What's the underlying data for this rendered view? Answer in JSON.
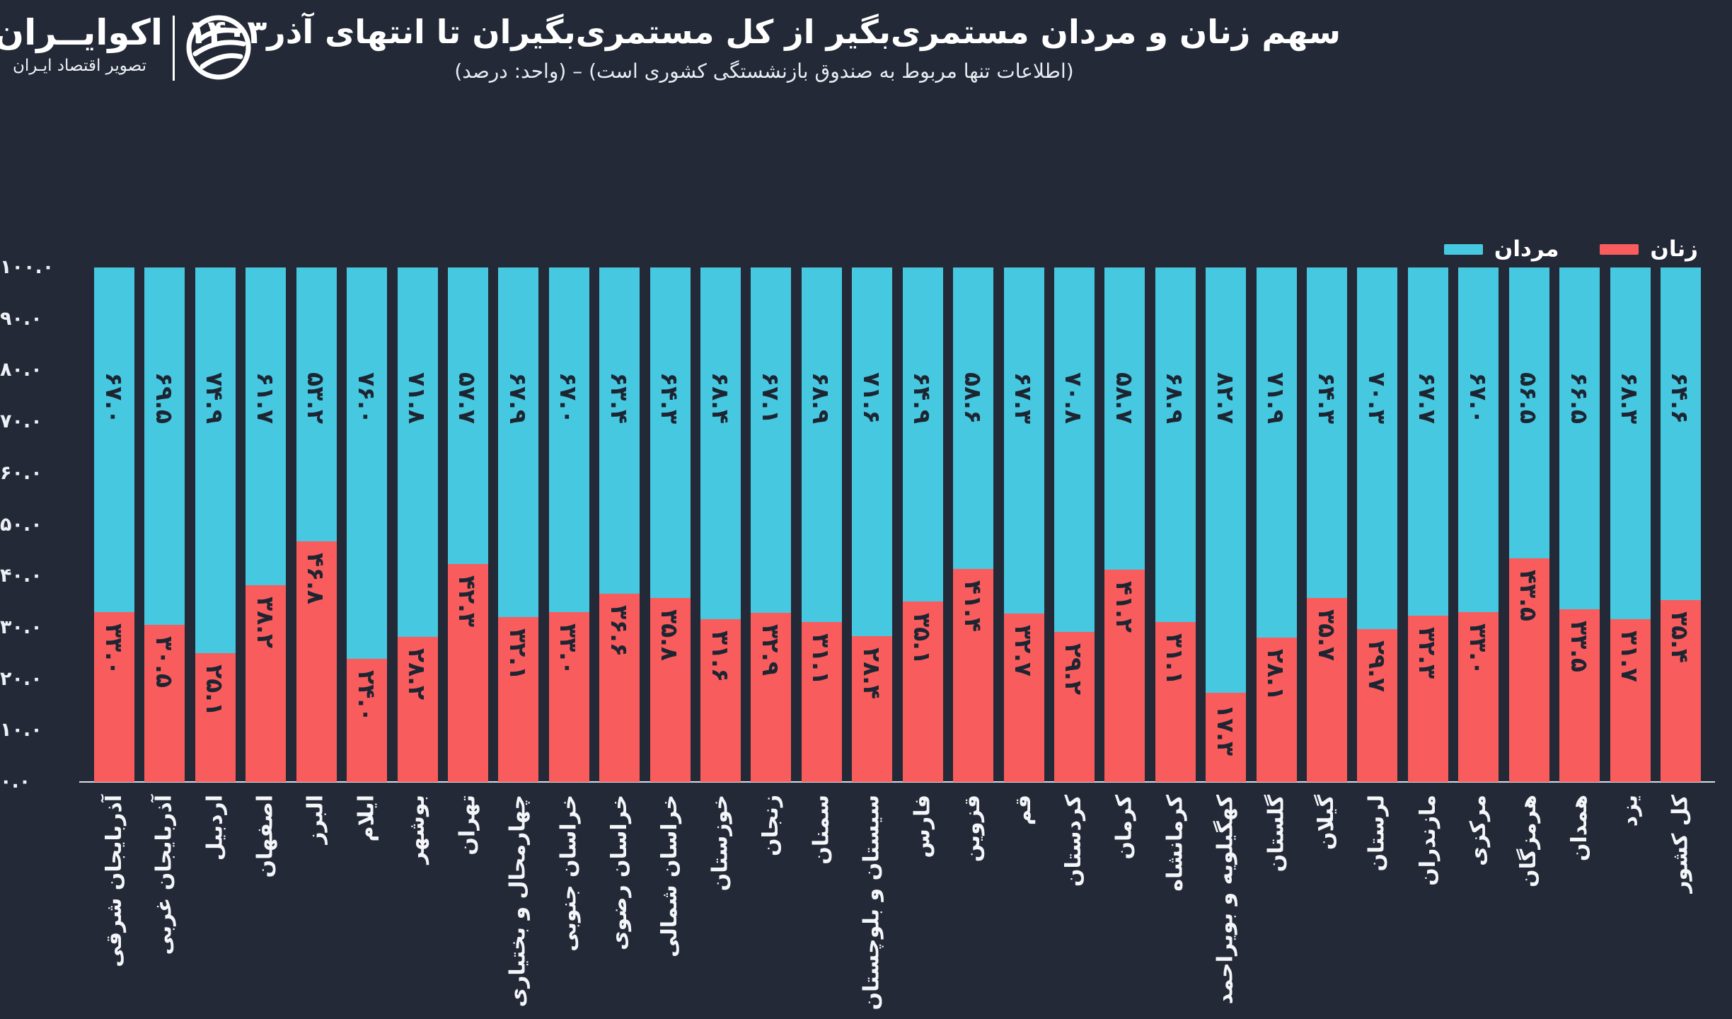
{
  "page": {
    "background": "#232936"
  },
  "logo": {
    "title": "اکوایــران",
    "tagline": "تصویر اقتصاد ایـران"
  },
  "header": {
    "title": "سهم زنان و مردان مستمری‌بگیر از کل مستمری‌بگیران تا انتهای آذر۱۴۰۳",
    "subtitle": "(اطلاعات تنها مربوط به صندوق بازنشستگی کشوری است) – (واحد: درصد)"
  },
  "legend": {
    "entries": [
      {
        "label": "زنان",
        "color": "#f95c5c"
      },
      {
        "label": "مردان",
        "color": "#46c8e1"
      }
    ]
  },
  "chart_data": {
    "type": "bar",
    "stacked": true,
    "normalized_to": 100,
    "unit": "درصد",
    "ylim": [
      0,
      100
    ],
    "grid": false,
    "legend_position": "top-right",
    "ytick_labels": [
      "۱۰۰.۰",
      "۹۰.۰",
      "۸۰.۰",
      "۷۰.۰",
      "۶۰.۰",
      "۵۰.۰",
      "۴۰.۰",
      "۳۰.۰",
      "۲۰.۰",
      "۱۰.۰",
      "۰.۰"
    ],
    "ytick_values": [
      100,
      90,
      80,
      70,
      60,
      50,
      40,
      30,
      20,
      10,
      0
    ],
    "categories": [
      "آذربایجان شرقی",
      "آذربایجان غربی",
      "اردبیل",
      "اصفهان",
      "البرز",
      "ایلام",
      "بوشهر",
      "تهران",
      "چهارمحال و بختیاری",
      "خراسان جنوبی",
      "خراسان رضوی",
      "خراسان شمالی",
      "خوزستان",
      "زنجان",
      "سمنان",
      "سیستان و بلوچستان",
      "فارس",
      "قزوین",
      "قم",
      "کردستان",
      "کرمان",
      "کرمانشاه",
      "کهگیلویه و بویراحمد",
      "گلستان",
      "گیلان",
      "لرستان",
      "مازندران",
      "مرکزی",
      "هرمزگان",
      "همدان",
      "یزد",
      "کل کشور"
    ],
    "series": [
      {
        "name": "مردان",
        "color": "#46c8e1",
        "values": [
          67.0,
          69.5,
          74.9,
          61.7,
          53.2,
          76.0,
          71.8,
          57.7,
          67.9,
          67.0,
          63.4,
          64.3,
          68.4,
          67.1,
          68.9,
          71.6,
          64.9,
          58.6,
          67.3,
          70.8,
          58.7,
          68.9,
          82.7,
          71.9,
          64.3,
          70.3,
          67.7,
          67.0,
          56.5,
          66.5,
          68.3,
          64.6
        ],
        "labels": [
          "۶۷.۰",
          "۶۹.۵",
          "۷۴.۹",
          "۶۱.۷",
          "۵۳.۲",
          "۷۶.۰",
          "۷۱.۸",
          "۵۷.۷",
          "۶۷.۹",
          "۶۷.۰",
          "۶۳.۴",
          "۶۴.۳",
          "۶۸.۴",
          "۶۷.۱",
          "۶۸.۹",
          "۷۱.۶",
          "۶۴.۹",
          "۵۸.۶",
          "۶۷.۳",
          "۷۰.۸",
          "۵۸.۷",
          "۶۸.۹",
          "۸۲.۷",
          "۷۱.۹",
          "۶۴.۳",
          "۷۰.۳",
          "۶۷.۷",
          "۶۷.۰",
          "۵۶.۵",
          "۶۶.۵",
          "۶۸.۳",
          "۶۴.۶"
        ]
      },
      {
        "name": "زنان",
        "color": "#f95c5c",
        "values": [
          33.0,
          30.5,
          25.1,
          38.2,
          46.8,
          24.0,
          28.2,
          42.3,
          32.1,
          33.0,
          36.6,
          35.8,
          31.6,
          32.9,
          31.1,
          28.4,
          35.1,
          41.4,
          32.7,
          29.2,
          41.2,
          31.1,
          17.3,
          28.1,
          35.7,
          29.7,
          32.3,
          33.0,
          43.5,
          33.5,
          31.7,
          35.4
        ],
        "labels": [
          "۳۳.۰",
          "۳۰.۵",
          "۲۵.۱",
          "۳۸.۲",
          "۴۶.۸",
          "۲۴.۰",
          "۲۸.۲",
          "۴۲.۳",
          "۳۲.۱",
          "۳۳.۰",
          "۳۶.۶",
          "۳۵.۸",
          "۳۱.۶",
          "۳۲.۹",
          "۳۱.۱",
          "۲۸.۴",
          "۳۵.۱",
          "۴۱.۴",
          "۳۲.۷",
          "۲۹.۲",
          "۴۱.۲",
          "۳۱.۱",
          "۱۷.۳",
          "۲۸.۱",
          "۳۵.۷",
          "۲۹.۷",
          "۳۲.۳",
          "۳۳.۰",
          "۴۳.۵",
          "۳۳.۵",
          "۳۱.۷",
          "۳۵.۴"
        ]
      }
    ]
  }
}
